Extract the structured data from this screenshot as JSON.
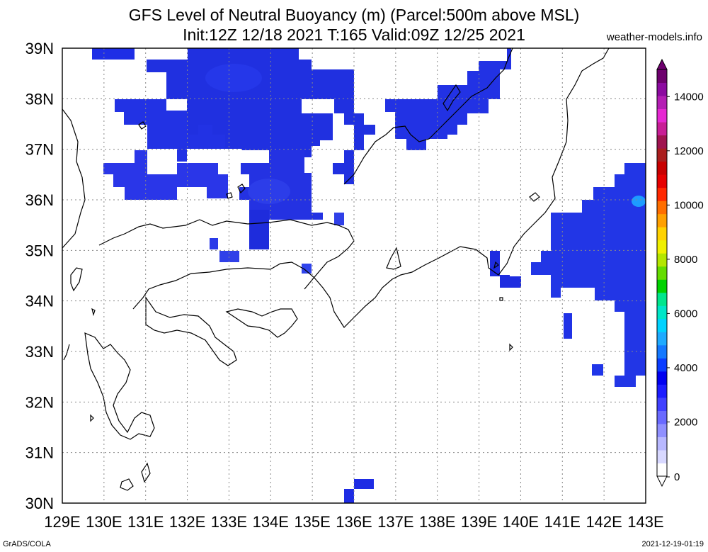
{
  "title_line1": "GFS Level of Neutral Buoyancy (m) (Parcel:500m above MSL)",
  "title_line2": "Init:12Z 12/18 2021 T:165 Valid:09Z 12/25 2021",
  "site": "weather-models.info",
  "footer_left": "GrADS/COLA",
  "footer_right": "2021-12-19-01:19",
  "map": {
    "lon_range": [
      129,
      143
    ],
    "lat_range": [
      30,
      39
    ],
    "lon_labels": [
      "129E",
      "130E",
      "131E",
      "132E",
      "133E",
      "134E",
      "135E",
      "136E",
      "137E",
      "138E",
      "139E",
      "140E",
      "141E",
      "142E",
      "143E"
    ],
    "lat_labels": [
      "30N",
      "31N",
      "32N",
      "33N",
      "34N",
      "35N",
      "36N",
      "37N",
      "38N",
      "39N"
    ]
  },
  "colorbar": {
    "labels": [
      "0",
      "2000",
      "4000",
      "6000",
      "8000",
      "10000",
      "12000",
      "14000"
    ],
    "colors": [
      "#ffffff",
      "#d8d8ff",
      "#b8b8ff",
      "#9090ff",
      "#6a6aff",
      "#4040ff",
      "#1c1cff",
      "#0000f0",
      "#0a3cff",
      "#1478ff",
      "#1eaaff",
      "#00d2ff",
      "#00e6c8",
      "#00e68c",
      "#00d200",
      "#64dc00",
      "#b4e600",
      "#f0f000",
      "#ffd200",
      "#ffa000",
      "#ff6e00",
      "#ff2800",
      "#e60000",
      "#c80000",
      "#aa1e1e",
      "#a01450",
      "#c81e96",
      "#e628d2",
      "#b41eb4",
      "#8c0aa0",
      "#6e006e"
    ]
  },
  "icons": {
    "colorbar_end": "triangle-icon"
  }
}
